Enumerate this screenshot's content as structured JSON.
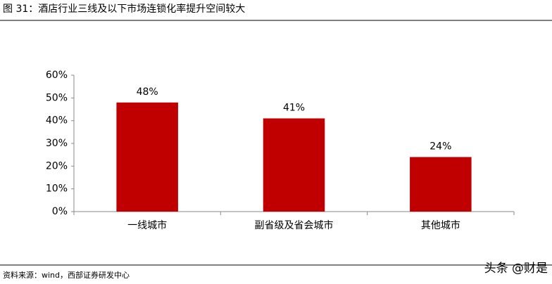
{
  "chart_data": {
    "type": "bar",
    "title": "图 31：酒店行业三线及以下市场连锁化率提升空间较大",
    "source": "资料来源：wind，西部证券研发中心",
    "watermark": "头条 @财是",
    "categories": [
      "一线城市",
      "副省级及省会城市",
      "其他城市"
    ],
    "values": [
      48,
      41,
      24
    ],
    "value_labels": [
      "48%",
      "41%",
      "24%"
    ],
    "color": "#c00000",
    "ylim": [
      0,
      60
    ],
    "yticks": [
      {
        "value": 0,
        "label": "0%"
      },
      {
        "value": 10,
        "label": "10%"
      },
      {
        "value": 20,
        "label": "20%"
      },
      {
        "value": 30,
        "label": "30%"
      },
      {
        "value": 40,
        "label": "40%"
      },
      {
        "value": 50,
        "label": "50%"
      },
      {
        "value": 60,
        "label": "60%"
      }
    ],
    "grid": false
  }
}
